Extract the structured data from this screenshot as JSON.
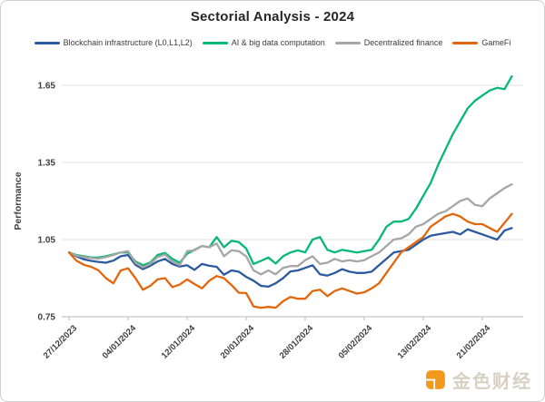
{
  "frame": {
    "background": "#ffffff",
    "border_color": "#cfcfcf"
  },
  "watermark": {
    "text": "金色财经",
    "icon": "jinse-coin-icon",
    "text_color": "#d8d1c3",
    "icon_color": "#f29a1d"
  },
  "colors": {
    "title_text": "#262626",
    "axis_text": "#404040",
    "gridline": "#e1e1e1",
    "axis_line": "#b7b7b7"
  },
  "chart_data": {
    "type": "line",
    "title": "Sectorial Analysis - 2024",
    "xlabel": "",
    "ylabel": "Performance",
    "legend_position": "top",
    "grid": "horizontal",
    "ylim": [
      0.75,
      1.72
    ],
    "y_ticks": [
      0.75,
      1.05,
      1.35,
      1.65
    ],
    "x_start_date": "27/12/2023",
    "x_frequency": "daily",
    "x_tick_labels": [
      "27/12/2023",
      "04/01/2024",
      "12/01/2024",
      "20/01/2024",
      "28/01/2024",
      "05/02/2024",
      "13/02/2024",
      "21/02/2024"
    ],
    "x_tick_day_indices": [
      0,
      8,
      16,
      24,
      32,
      40,
      48,
      56
    ],
    "n_points": 61,
    "series": [
      {
        "name": "Blockchain infrastructure (L0,L1,L2)",
        "color": "#2b5aa0",
        "values": [
          1.0,
          0.985,
          0.973,
          0.967,
          0.963,
          0.96,
          0.968,
          0.985,
          0.99,
          0.952,
          0.935,
          0.948,
          0.965,
          0.975,
          0.955,
          0.945,
          0.95,
          0.932,
          0.955,
          0.948,
          0.944,
          0.913,
          0.93,
          0.925,
          0.905,
          0.89,
          0.87,
          0.867,
          0.88,
          0.9,
          0.926,
          0.93,
          0.94,
          0.95,
          0.915,
          0.91,
          0.92,
          0.935,
          0.925,
          0.92,
          0.92,
          0.925,
          0.95,
          0.975,
          1.0,
          1.005,
          1.01,
          1.03,
          1.05,
          1.065,
          1.07,
          1.075,
          1.08,
          1.07,
          1.09,
          1.08,
          1.07,
          1.06,
          1.05,
          1.085,
          1.095
        ]
      },
      {
        "name": "AI & big data computation",
        "color": "#07b878",
        "values": [
          1.0,
          0.99,
          0.985,
          0.98,
          0.98,
          0.985,
          0.992,
          1.0,
          1.0,
          0.965,
          0.95,
          0.96,
          0.99,
          0.998,
          0.975,
          0.96,
          0.995,
          1.01,
          1.025,
          1.02,
          1.06,
          1.02,
          1.045,
          1.04,
          1.015,
          0.955,
          0.967,
          0.98,
          0.957,
          0.985,
          1.0,
          1.008,
          1.0,
          1.05,
          1.06,
          1.01,
          1.0,
          1.01,
          1.005,
          1.0,
          1.005,
          1.01,
          1.05,
          1.1,
          1.12,
          1.12,
          1.13,
          1.17,
          1.22,
          1.27,
          1.34,
          1.4,
          1.46,
          1.51,
          1.56,
          1.59,
          1.61,
          1.63,
          1.64,
          1.635,
          1.685
        ]
      },
      {
        "name": "Decentralized finance",
        "color": "#a6a6a6",
        "values": [
          1.0,
          0.988,
          0.982,
          0.978,
          0.976,
          0.982,
          0.99,
          1.0,
          1.005,
          0.96,
          0.942,
          0.955,
          0.982,
          0.992,
          0.965,
          0.95,
          1.005,
          1.008,
          1.025,
          1.02,
          1.035,
          0.985,
          1.008,
          1.005,
          0.985,
          0.93,
          0.915,
          0.93,
          0.915,
          0.94,
          0.947,
          0.947,
          0.97,
          0.985,
          0.955,
          0.96,
          0.975,
          0.965,
          0.97,
          0.965,
          0.97,
          0.985,
          1.0,
          1.025,
          1.05,
          1.055,
          1.07,
          1.1,
          1.11,
          1.13,
          1.15,
          1.16,
          1.18,
          1.2,
          1.21,
          1.185,
          1.18,
          1.21,
          1.23,
          1.25,
          1.265
        ]
      },
      {
        "name": "GameFi",
        "color": "#e4660c",
        "values": [
          1.0,
          0.968,
          0.952,
          0.944,
          0.93,
          0.9,
          0.88,
          0.93,
          0.938,
          0.9,
          0.855,
          0.87,
          0.895,
          0.9,
          0.865,
          0.875,
          0.895,
          0.877,
          0.86,
          0.89,
          0.908,
          0.9,
          0.873,
          0.843,
          0.842,
          0.79,
          0.785,
          0.788,
          0.785,
          0.81,
          0.827,
          0.82,
          0.82,
          0.85,
          0.855,
          0.83,
          0.85,
          0.86,
          0.85,
          0.84,
          0.845,
          0.86,
          0.88,
          0.92,
          0.96,
          1.0,
          1.02,
          1.04,
          1.06,
          1.1,
          1.12,
          1.14,
          1.15,
          1.14,
          1.12,
          1.11,
          1.11,
          1.095,
          1.08,
          1.115,
          1.15
        ]
      }
    ]
  }
}
